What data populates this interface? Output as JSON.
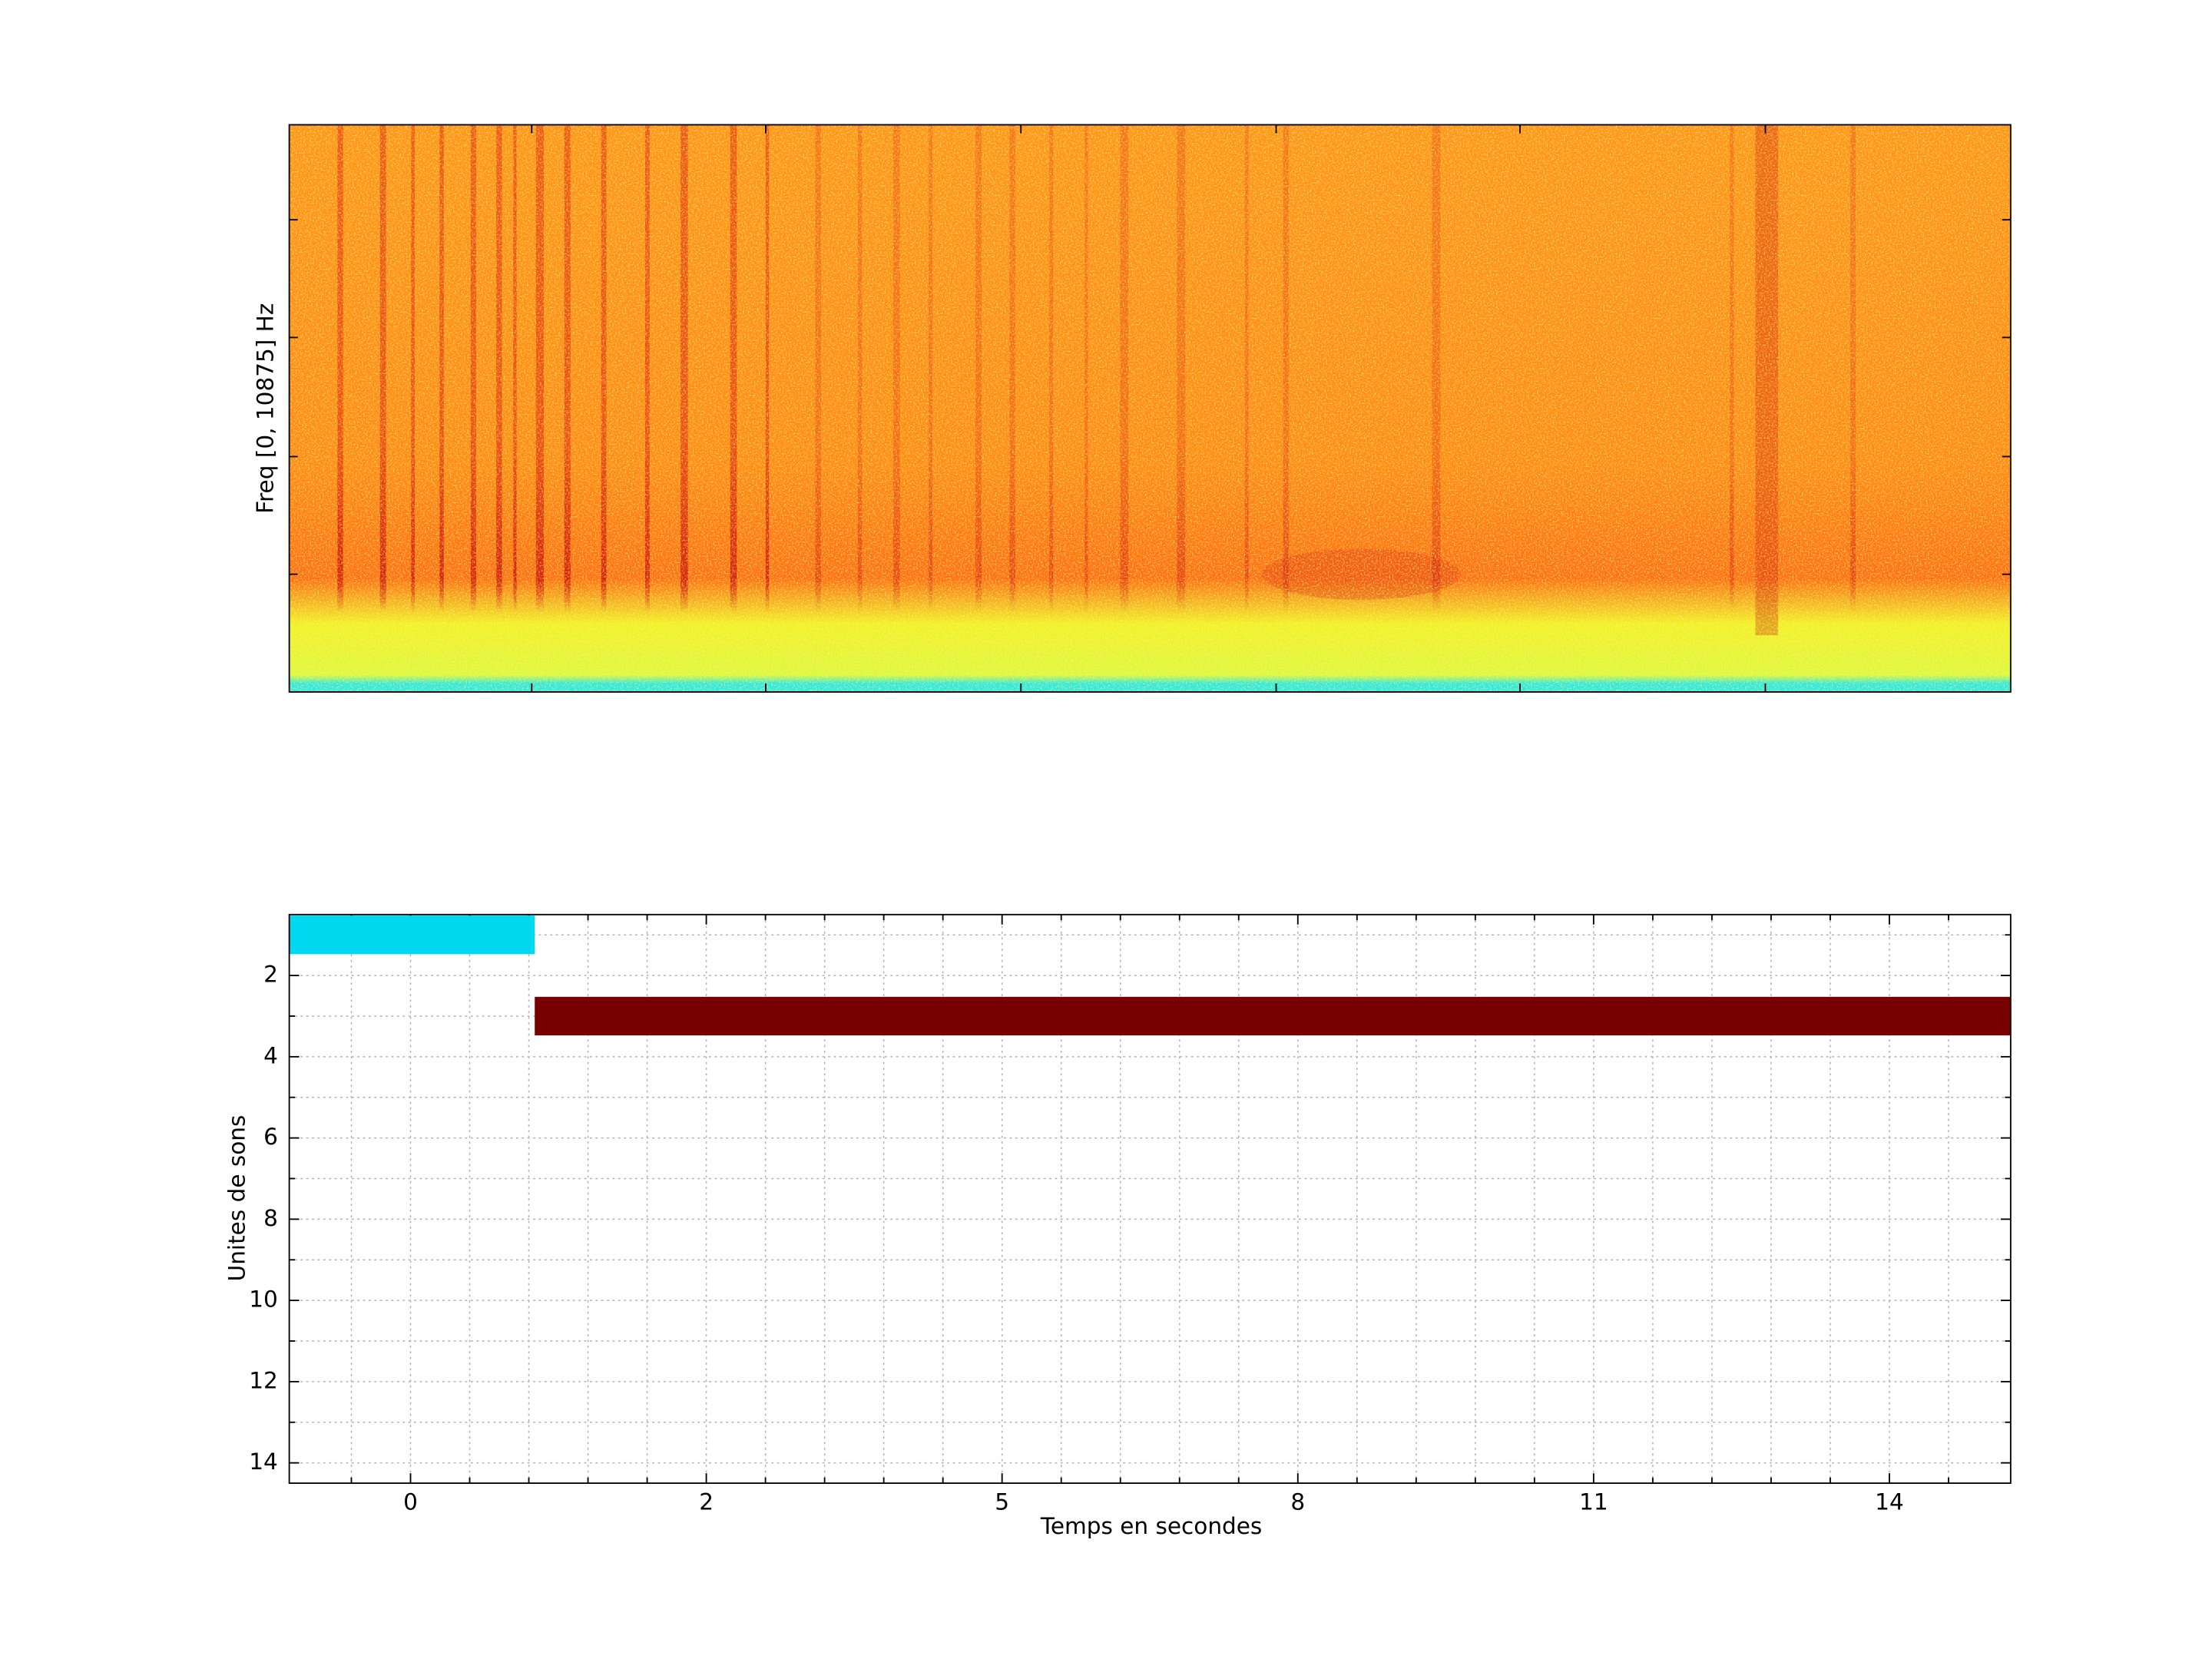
{
  "chart_data": [
    {
      "type": "spectrogram",
      "ylabel": "Freq [0, 10875] Hz"
    },
    {
      "type": "gantt",
      "xlabel": "Temps en secondes",
      "ylabel": "Unites de sons",
      "xlim": [
        -0.41,
        5.41
      ],
      "xticks": [
        0,
        {
          "value": 1,
          "label": "2"
        },
        {
          "value": 2,
          "label": "5"
        },
        {
          "value": 3,
          "label": "8"
        },
        {
          "value": 4,
          "label": "11"
        },
        {
          "value": 5,
          "label": "14"
        }
      ],
      "xminorticks": [
        -0.2,
        0.2,
        0.4,
        0.6,
        0.8,
        1.2,
        1.4,
        1.6,
        1.8,
        2.2,
        2.4,
        2.6,
        2.8,
        3.2,
        3.4,
        3.6,
        3.8,
        4.2,
        4.4,
        4.6,
        4.8,
        5.2
      ],
      "ylim": [
        0.5,
        14.5
      ],
      "yticks": [
        2,
        4,
        6,
        8,
        10,
        12,
        14
      ],
      "yminorticks": [
        1,
        3,
        5,
        7,
        9,
        11,
        13
      ],
      "grid": true,
      "bars": [
        {
          "row": 1,
          "start": -0.41,
          "end": 0.42,
          "color": "#00d8f0"
        },
        {
          "row": 3,
          "start": 0.42,
          "end": 5.41,
          "color": "#780000"
        }
      ]
    }
  ]
}
